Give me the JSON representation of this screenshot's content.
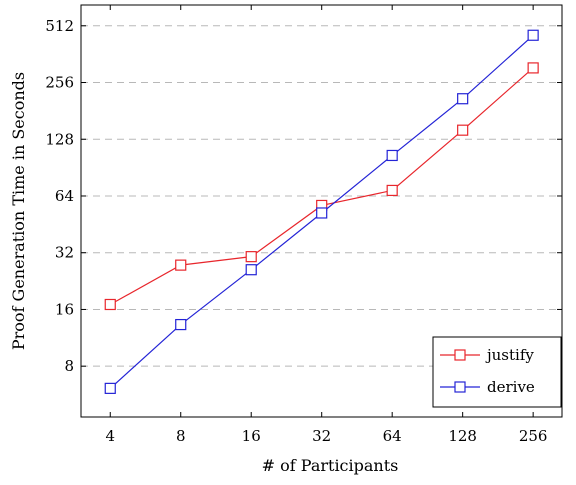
{
  "chart_data": {
    "type": "line",
    "title": "",
    "xlabel": "# of Participants",
    "ylabel": "Proof Generation Time in Seconds",
    "x_scale": "log2",
    "y_scale": "log2",
    "x_ticks": [
      4,
      8,
      16,
      32,
      64,
      128,
      256
    ],
    "y_ticks": [
      8,
      16,
      32,
      64,
      128,
      256,
      512
    ],
    "xlim": [
      3,
      340
    ],
    "ylim": [
      4.3,
      660
    ],
    "grid": "horizontal-dashed",
    "legend_position": "bottom-right",
    "series": [
      {
        "name": "justify",
        "color": "#e8262c",
        "marker": "square",
        "points": [
          [
            4,
            17
          ],
          [
            8,
            27.5
          ],
          [
            16,
            30.5
          ],
          [
            32,
            57
          ],
          [
            64,
            68.5
          ],
          [
            128,
            143
          ],
          [
            256,
            306
          ]
        ]
      },
      {
        "name": "derive",
        "color": "#2424d6",
        "marker": "square",
        "points": [
          [
            4,
            6.1
          ],
          [
            8,
            13.3
          ],
          [
            16,
            26
          ],
          [
            32,
            52
          ],
          [
            64,
            105
          ],
          [
            128,
            210
          ],
          [
            256,
            456
          ]
        ]
      }
    ]
  }
}
